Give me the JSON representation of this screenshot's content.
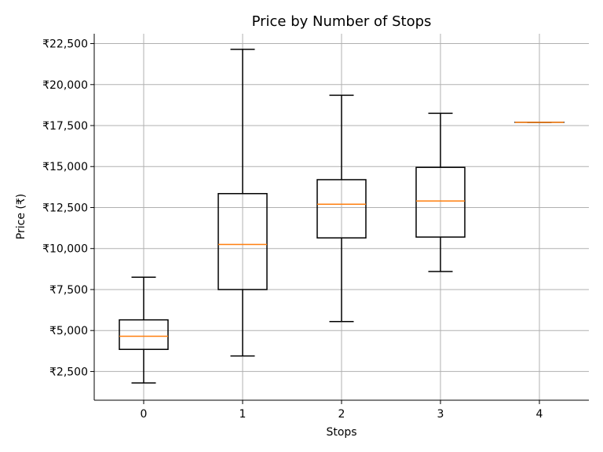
{
  "chart_data": {
    "type": "box",
    "title": "Price by Number of Stops",
    "xlabel": "Stops",
    "ylabel": "Price (₹)",
    "y_tick_prefix": "₹",
    "categories": [
      "0",
      "1",
      "2",
      "3",
      "4"
    ],
    "boxes": [
      {
        "category": "0",
        "whisker_low": 1800,
        "q1": 3850,
        "median": 4650,
        "q3": 5650,
        "whisker_high": 8250
      },
      {
        "category": "1",
        "whisker_low": 3450,
        "q1": 7500,
        "median": 10250,
        "q3": 13350,
        "whisker_high": 22150
      },
      {
        "category": "2",
        "whisker_low": 5550,
        "q1": 10650,
        "median": 12700,
        "q3": 14200,
        "whisker_high": 19350
      },
      {
        "category": "3",
        "whisker_low": 8600,
        "q1": 10700,
        "median": 12900,
        "q3": 14950,
        "whisker_high": 18250
      },
      {
        "category": "4",
        "whisker_low": 17700,
        "q1": 17700,
        "median": 17700,
        "q3": 17700,
        "whisker_high": 17700
      }
    ],
    "y_ticks": [
      2500,
      5000,
      7500,
      10000,
      12500,
      15000,
      17500,
      20000,
      22500
    ],
    "ylim": [
      750,
      23100
    ],
    "grid": true,
    "colors": {
      "box": "#000000",
      "median": "#ff7f0e",
      "grid": "#b0b0b0"
    }
  }
}
